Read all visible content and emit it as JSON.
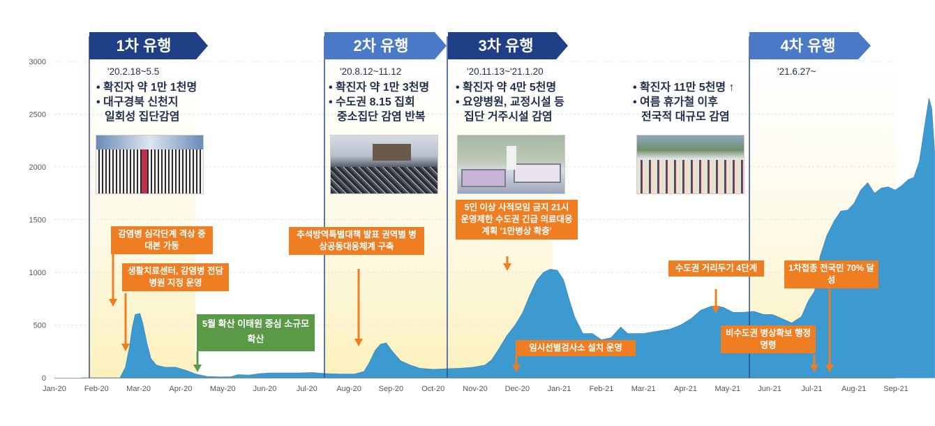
{
  "chart_data": {
    "type": "area",
    "x_ticks": [
      "Jan-20",
      "Feb-20",
      "Mar-20",
      "Apr-20",
      "May-20",
      "Jun-20",
      "Jul-20",
      "Aug-20",
      "Sep-20",
      "Oct-20",
      "Nov-20",
      "Dec-20",
      "Jan-21",
      "Feb-21",
      "Mar-21",
      "Apr-21",
      "May-21",
      "Jun-21",
      "Jul-21",
      "Aug-21",
      "Sep-21"
    ],
    "y_ticks": [
      "0",
      "500",
      "1000",
      "1500",
      "2000",
      "2500",
      "3000"
    ],
    "ylim": [
      0,
      3000
    ],
    "series_color": "#3d9ad0",
    "points": [
      [
        "2020-01-20",
        0
      ],
      [
        "2020-02-18",
        0
      ],
      [
        "2020-02-22",
        100
      ],
      [
        "2020-02-25",
        300
      ],
      [
        "2020-02-27",
        480
      ],
      [
        "2020-02-29",
        600
      ],
      [
        "2020-03-02",
        610
      ],
      [
        "2020-03-04",
        520
      ],
      [
        "2020-03-07",
        330
      ],
      [
        "2020-03-10",
        180
      ],
      [
        "2020-03-14",
        120
      ],
      [
        "2020-03-20",
        100
      ],
      [
        "2020-03-28",
        100
      ],
      [
        "2020-04-05",
        70
      ],
      [
        "2020-04-12",
        35
      ],
      [
        "2020-04-20",
        12
      ],
      [
        "2020-04-30",
        8
      ],
      [
        "2020-05-07",
        10
      ],
      [
        "2020-05-12",
        30
      ],
      [
        "2020-05-20",
        25
      ],
      [
        "2020-05-28",
        40
      ],
      [
        "2020-06-05",
        45
      ],
      [
        "2020-06-15",
        45
      ],
      [
        "2020-06-25",
        45
      ],
      [
        "2020-07-05",
        50
      ],
      [
        "2020-07-15",
        40
      ],
      [
        "2020-07-25",
        35
      ],
      [
        "2020-08-05",
        35
      ],
      [
        "2020-08-12",
        60
      ],
      [
        "2020-08-16",
        150
      ],
      [
        "2020-08-20",
        260
      ],
      [
        "2020-08-24",
        320
      ],
      [
        "2020-08-28",
        330
      ],
      [
        "2020-09-02",
        250
      ],
      [
        "2020-09-08",
        160
      ],
      [
        "2020-09-15",
        120
      ],
      [
        "2020-09-22",
        90
      ],
      [
        "2020-10-01",
        80
      ],
      [
        "2020-10-10",
        85
      ],
      [
        "2020-10-20",
        90
      ],
      [
        "2020-10-30",
        100
      ],
      [
        "2020-11-08",
        120
      ],
      [
        "2020-11-13",
        170
      ],
      [
        "2020-11-18",
        270
      ],
      [
        "2020-11-24",
        400
      ],
      [
        "2020-11-30",
        500
      ],
      [
        "2020-12-05",
        620
      ],
      [
        "2020-12-10",
        780
      ],
      [
        "2020-12-15",
        920
      ],
      [
        "2020-12-20",
        1000
      ],
      [
        "2020-12-25",
        1030
      ],
      [
        "2020-12-30",
        1020
      ],
      [
        "2021-01-04",
        930
      ],
      [
        "2021-01-08",
        750
      ],
      [
        "2021-01-12",
        580
      ],
      [
        "2021-01-18",
        420
      ],
      [
        "2021-01-25",
        420
      ],
      [
        "2021-02-01",
        360
      ],
      [
        "2021-02-08",
        380
      ],
      [
        "2021-02-15",
        480
      ],
      [
        "2021-02-20",
        420
      ],
      [
        "2021-03-01",
        420
      ],
      [
        "2021-03-10",
        440
      ],
      [
        "2021-03-20",
        460
      ],
      [
        "2021-03-28",
        500
      ],
      [
        "2021-04-05",
        560
      ],
      [
        "2021-04-12",
        640
      ],
      [
        "2021-04-20",
        680
      ],
      [
        "2021-04-28",
        670
      ],
      [
        "2021-05-05",
        620
      ],
      [
        "2021-05-12",
        620
      ],
      [
        "2021-05-20",
        630
      ],
      [
        "2021-05-27",
        600
      ],
      [
        "2021-06-03",
        600
      ],
      [
        "2021-06-10",
        560
      ],
      [
        "2021-06-17",
        520
      ],
      [
        "2021-06-24",
        580
      ],
      [
        "2021-06-29",
        730
      ],
      [
        "2021-07-03",
        820
      ],
      [
        "2021-07-07",
        1150
      ],
      [
        "2021-07-12",
        1350
      ],
      [
        "2021-07-17",
        1480
      ],
      [
        "2021-07-22",
        1580
      ],
      [
        "2021-07-27",
        1590
      ],
      [
        "2021-08-01",
        1650
      ],
      [
        "2021-08-06",
        1780
      ],
      [
        "2021-08-11",
        1850
      ],
      [
        "2021-08-16",
        1750
      ],
      [
        "2021-08-21",
        1800
      ],
      [
        "2021-08-26",
        1810
      ],
      [
        "2021-08-31",
        1780
      ],
      [
        "2021-09-05",
        1820
      ],
      [
        "2021-09-10",
        1880
      ],
      [
        "2021-09-14",
        1900
      ],
      [
        "2021-09-18",
        2050
      ],
      [
        "2021-09-22",
        2400
      ],
      [
        "2021-09-25",
        2650
      ],
      [
        "2021-09-27",
        2550
      ],
      [
        "2021-09-29",
        2150
      ]
    ]
  },
  "waves": [
    {
      "label": "1차 유행",
      "period": "'20.2.18~5.5",
      "lines": [
        "• 확진자 약 1만 1천명",
        "• 대구경북 신천지",
        "일회성 집단감염"
      ]
    },
    {
      "label": "2차 유행",
      "period": "'20.8.12~11.12",
      "lines": [
        "• 확진자 약 1만 3천명",
        "• 수도권 8.15 집회",
        "중소집단 감염 반복"
      ]
    },
    {
      "label": "3차 유행",
      "period": "'20.11.13~'21.1.20",
      "lines": [
        "• 확진자 약 4만 5천명",
        "• 요양병원, 교정시설 등",
        "집단 거주시설 감염"
      ]
    },
    {
      "label": "4차 유행",
      "period": "'21.6.27~",
      "lines": [
        "• 확진자 11만 5천명 ↑",
        "• 여름 휴가철 이후",
        "전국적 대규모 감염"
      ]
    }
  ],
  "annotations": {
    "a1": "감염병 심각단계 격상 중대본 가동",
    "a2": "생활치료센터, 감염병 전담병원 지정 운영",
    "a3": "5월 확산 이태원 중심 소규모 확산",
    "a4": "추석방역특별대책 발표 권역별 병상공동대응체계 구축",
    "a5": "5인 이상 사적모임 금지 21시 운영제한 수도권 긴급 의료대응계획 '1만병상 확충'",
    "a6": "임시선별검사소 설치 운영",
    "a7": "수도권 거리두기 4단계",
    "a8": "비수도권 병상확보 행정명령",
    "a9": "1차접종 전국민 70% 달성"
  }
}
